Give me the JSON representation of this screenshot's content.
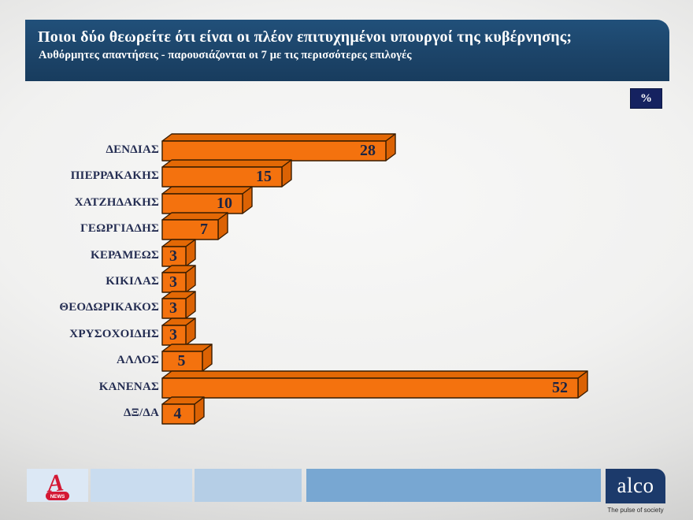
{
  "header": {
    "title": "Ποιοι δύο θεωρείτε ότι είναι οι πλέον επιτυχημένοι υπουργοί της κυβέρνησης;",
    "subtitle": "Αυθόρμητες απαντήσεις - παρουσιάζονται οι 7 με τις περισσότερες επιλογές",
    "bg_color": "#1c4469"
  },
  "unit_badge": "%",
  "chart_data": {
    "type": "bar",
    "orientation": "horizontal",
    "title": "Ποιοι δύο θεωρείτε ότι είναι οι πλέον επιτυχημένοι υπουργοί της κυβέρνησης;",
    "categories": [
      "ΔΕΝΔΙΑΣ",
      "ΠΙΕΡΡΑΚΑΚΗΣ",
      "ΧΑΤΖΗΔΑΚΗΣ",
      "ΓΕΩΡΓΙΑΔΗΣ",
      "ΚΕΡΑΜΕΩΣ",
      "ΚΙΚΙΛΑΣ",
      "ΘΕΟΔΩΡΙΚΑΚΟΣ",
      "ΧΡΥΣΟΧΟΙΔΗΣ",
      "ΑΛΛΟΣ",
      "ΚΑΝΕΝΑΣ",
      "ΔΞ/ΔΑ"
    ],
    "values": [
      28,
      15,
      10,
      7,
      3,
      3,
      3,
      3,
      5,
      52,
      4
    ],
    "unit": "%",
    "xlim": [
      0,
      55
    ],
    "grid": false,
    "data_labels": true,
    "bar_color_front": "#f4720e",
    "bar_color_top": "#e36805",
    "bar_color_side": "#db6204",
    "bar_outline": "#3a1d00",
    "value_label_color": "#1c2442",
    "category_label_color": "#242d52"
  },
  "footer": {
    "alpha_news_label": "NEWS",
    "alpha_red": "#d41834",
    "alco_logo": "alco",
    "alco_tagline": "The pulse of society",
    "alco_navy": "#1c3a6b",
    "bar_colors": [
      "#c9dcef",
      "#b5cee6",
      "#78a7d2"
    ]
  }
}
